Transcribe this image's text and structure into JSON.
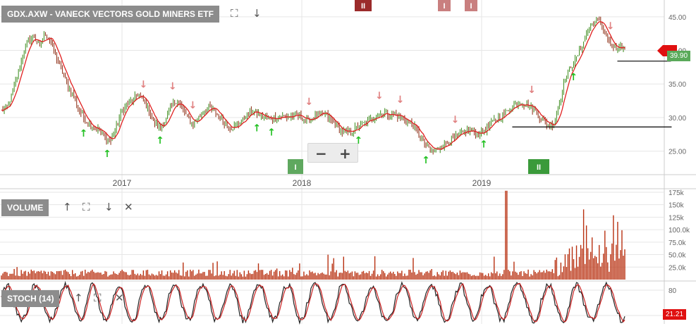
{
  "chart_data": [
    {
      "type": "line",
      "title": "GDX.AXW - VANECK VECTORS GOLD MINERS ETF",
      "series": [],
      "x_labels": [
        "2017",
        "2018",
        "2019"
      ],
      "yticks": [
        25.0,
        30.0,
        35.0,
        40.0,
        45.0
      ],
      "ylim": [
        21.5,
        47.5
      ],
      "last_price": "39.90",
      "closes": [
        31.0,
        31.5,
        33.5,
        36.5,
        39.5,
        41.5,
        42.0,
        40.5,
        42.5,
        41.5,
        39.0,
        37.0,
        35.0,
        33.5,
        31.5,
        30.0,
        29.0,
        28.5,
        28.0,
        27.0,
        26.5,
        28.5,
        31.0,
        32.0,
        32.5,
        33.5,
        32.5,
        31.0,
        29.0,
        28.5,
        29.5,
        31.5,
        32.5,
        31.5,
        30.0,
        29.0,
        30.0,
        31.0,
        31.5,
        31.0,
        30.0,
        29.0,
        28.5,
        28.8,
        29.5,
        30.5,
        31.0,
        30.5,
        30.0,
        29.8,
        30.0,
        30.2,
        30.0,
        30.2,
        30.3,
        30.0,
        29.5,
        30.0,
        30.5,
        30.5,
        29.8,
        29.0,
        28.0,
        27.7,
        28.0,
        28.5,
        29.0,
        29.5,
        30.0,
        30.5,
        30.8,
        30.3,
        30.5,
        30.0,
        29.5,
        29.0,
        28.0,
        26.5,
        25.5,
        25.0,
        25.5,
        26.0,
        26.5,
        27.0,
        27.5,
        28.0,
        28.0,
        27.5,
        28.0,
        28.5,
        29.5,
        30.0,
        30.5,
        31.5,
        32.0,
        32.2,
        32.0,
        31.5,
        30.5,
        29.5,
        28.9,
        29.0,
        32.0,
        35.5,
        37.5,
        38.5,
        40.5,
        42.5,
        44.0,
        44.5,
        43.5,
        41.5,
        40.0,
        40.5,
        40.0
      ],
      "up_markers": [
        {
          "date_index": 0.12,
          "label": "↑"
        },
        {
          "date_index": 0.154,
          "label": "↑"
        },
        {
          "date_index": 0.23,
          "label": "↑"
        },
        {
          "date_index": 0.369,
          "label": "↑"
        },
        {
          "date_index": 0.39,
          "label": "↑"
        },
        {
          "date_index": 0.515,
          "label": "↑"
        },
        {
          "date_index": 0.612,
          "label": "↑"
        },
        {
          "date_index": 0.695,
          "label": "↑"
        },
        {
          "date_index": 0.824,
          "label": "↑"
        }
      ],
      "down_markers": [
        {
          "date_index": 0.062,
          "label": "↓"
        },
        {
          "date_index": 0.206,
          "label": "↓"
        },
        {
          "date_index": 0.248,
          "label": "↓"
        },
        {
          "date_index": 0.277,
          "label": "↓"
        },
        {
          "date_index": 0.444,
          "label": "↓"
        },
        {
          "date_index": 0.545,
          "label": "↓"
        },
        {
          "date_index": 0.575,
          "label": "↓"
        },
        {
          "date_index": 0.654,
          "label": "↓"
        },
        {
          "date_index": 0.764,
          "label": "↓"
        },
        {
          "date_index": 0.877,
          "label": "↓"
        }
      ],
      "support_lines": [
        {
          "y": 28.6,
          "from_index": 0.736,
          "to_index": 0.965
        },
        {
          "y": 38.4,
          "from_index": 0.887,
          "to_index": 0.964
        }
      ],
      "badges_top": [
        {
          "label": "II",
          "color": "#9b2b2b"
        },
        {
          "label": "I",
          "color": "#c97f7f"
        },
        {
          "label": "I",
          "color": "#c97f7f"
        }
      ],
      "badges_bottom": [
        {
          "label": "I",
          "color": "#5fa85f"
        },
        {
          "label": "II",
          "color": "#3a9a3a"
        }
      ]
    },
    {
      "type": "bar",
      "title": "VOLUME",
      "yticks": [
        "175k",
        "150k",
        "125k",
        "100.0k",
        "75.0k",
        "50.0k",
        "25.0k"
      ],
      "ytick_values": [
        175000,
        150000,
        125000,
        100000,
        75000,
        50000,
        25000
      ],
      "ylim": [
        0,
        182000
      ],
      "bar_color": "#b83010"
    },
    {
      "type": "line",
      "title": "STOCH (14)",
      "yticks": [
        80
      ],
      "ylim": [
        0,
        100
      ],
      "last_value": "21.21",
      "line_colors": [
        "#222222",
        "#cc2222"
      ]
    }
  ],
  "colors": {
    "grid": "#e6e6e6",
    "price_up": "#3a8a1a",
    "price_down": "#8a2a10",
    "ma": "#e02020",
    "arrow_up": "#22c022",
    "arrow_down": "#e08080",
    "volume": "#b83010",
    "tag_red": "#e01010",
    "tag_green": "#5aaa5a"
  },
  "icons": {
    "fullscreen": "⛶",
    "down_arrow": "↓",
    "up_arrow": "↑",
    "close": "✕",
    "minus": "−",
    "plus": "+"
  }
}
